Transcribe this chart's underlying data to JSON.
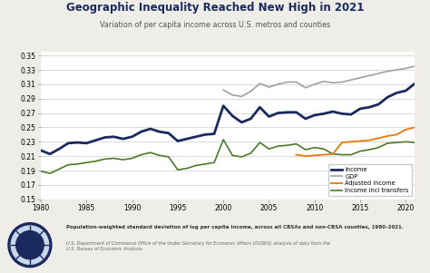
{
  "title": "Geographic Inequality Reached New High in 2021",
  "subtitle": "Variation of per capita income across U.S. metros and counties",
  "footer_bold": "Population-weighted standard deviation of log per capita income, across all CBSAs and non-CBSA counties, 1980–2021.",
  "footer_italic": "U.S. Department of Commerce Office of the Under Secretary for Economic Affairs (OUSEA) analysis of data from the\nU.S. Bureau of Economic Analysis",
  "xlim": [
    1980,
    2021
  ],
  "ylim": [
    0.15,
    0.355
  ],
  "yticks": [
    0.15,
    0.17,
    0.19,
    0.21,
    0.23,
    0.25,
    0.27,
    0.29,
    0.31,
    0.33,
    0.35
  ],
  "xticks": [
    1980,
    1985,
    1990,
    1995,
    2000,
    2005,
    2010,
    2015,
    2020
  ],
  "background_color": "#eeede8",
  "plot_bg_color": "#ffffff",
  "income_color": "#1b2a5e",
  "gdp_color": "#a0a0a0",
  "adjusted_color": "#e8801a",
  "transfers_color": "#4a7a28",
  "income": {
    "years": [
      1980,
      1981,
      1982,
      1983,
      1984,
      1985,
      1986,
      1987,
      1988,
      1989,
      1990,
      1991,
      1992,
      1993,
      1994,
      1995,
      1996,
      1997,
      1998,
      1999,
      2000,
      2001,
      2002,
      2003,
      2004,
      2005,
      2006,
      2007,
      2008,
      2009,
      2010,
      2011,
      2012,
      2013,
      2014,
      2015,
      2016,
      2017,
      2018,
      2019,
      2020,
      2021
    ],
    "values": [
      0.218,
      0.213,
      0.22,
      0.228,
      0.229,
      0.228,
      0.232,
      0.236,
      0.237,
      0.234,
      0.237,
      0.244,
      0.248,
      0.244,
      0.242,
      0.231,
      0.234,
      0.237,
      0.24,
      0.241,
      0.28,
      0.266,
      0.257,
      0.262,
      0.278,
      0.265,
      0.27,
      0.271,
      0.271,
      0.262,
      0.267,
      0.269,
      0.272,
      0.269,
      0.268,
      0.276,
      0.278,
      0.282,
      0.292,
      0.298,
      0.301,
      0.311
    ]
  },
  "gdp": {
    "years": [
      2000,
      2001,
      2002,
      2003,
      2004,
      2005,
      2006,
      2007,
      2008,
      2009,
      2010,
      2011,
      2012,
      2013,
      2014,
      2015,
      2016,
      2017,
      2018,
      2019,
      2020,
      2021
    ],
    "values": [
      0.302,
      0.295,
      0.293,
      0.3,
      0.311,
      0.306,
      0.31,
      0.313,
      0.313,
      0.305,
      0.31,
      0.314,
      0.312,
      0.313,
      0.316,
      0.319,
      0.322,
      0.325,
      0.328,
      0.33,
      0.332,
      0.335
    ]
  },
  "adjusted": {
    "years": [
      2008,
      2009,
      2010,
      2011,
      2012,
      2013,
      2014,
      2015,
      2016,
      2017,
      2018,
      2019,
      2020,
      2021
    ],
    "values": [
      0.212,
      0.21,
      0.211,
      0.212,
      0.213,
      0.229,
      0.23,
      0.231,
      0.232,
      0.235,
      0.238,
      0.24,
      0.247,
      0.25
    ]
  },
  "transfers": {
    "years": [
      1980,
      1981,
      1982,
      1983,
      1984,
      1985,
      1986,
      1987,
      1988,
      1989,
      1990,
      1991,
      1992,
      1993,
      1994,
      1995,
      1996,
      1997,
      1998,
      1999,
      2000,
      2001,
      2002,
      2003,
      2004,
      2005,
      2006,
      2007,
      2008,
      2009,
      2010,
      2011,
      2012,
      2013,
      2014,
      2015,
      2016,
      2017,
      2018,
      2019,
      2020,
      2021
    ],
    "values": [
      0.189,
      0.186,
      0.192,
      0.198,
      0.199,
      0.201,
      0.203,
      0.206,
      0.207,
      0.205,
      0.207,
      0.212,
      0.215,
      0.211,
      0.209,
      0.191,
      0.193,
      0.197,
      0.199,
      0.201,
      0.233,
      0.211,
      0.209,
      0.214,
      0.229,
      0.22,
      0.224,
      0.225,
      0.227,
      0.219,
      0.222,
      0.22,
      0.213,
      0.212,
      0.212,
      0.217,
      0.219,
      0.222,
      0.228,
      0.229,
      0.23,
      0.229
    ]
  }
}
